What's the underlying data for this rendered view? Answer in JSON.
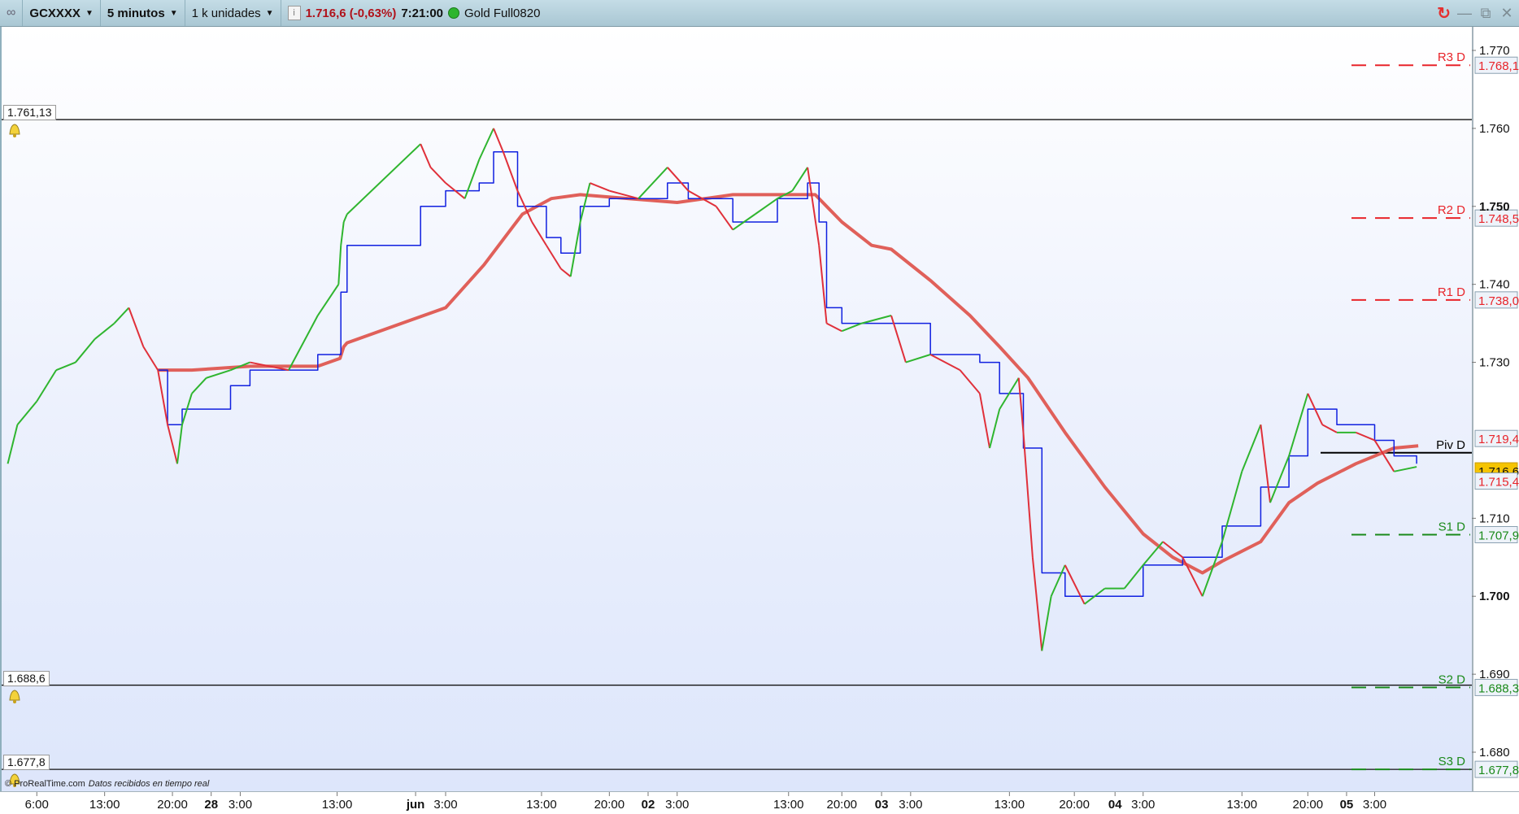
{
  "toolbar": {
    "instrument": "GCXXXX",
    "timeframe": "5 minutos",
    "units": "1 k unidades",
    "price_change": "1.716,6 (-0,63%)",
    "time": "7:21:00",
    "status_color": "#2db52d",
    "product": "Gold Full0820"
  },
  "footer": {
    "copyright": "© ProRealTime.com",
    "status": "Datos recibidos en tiempo real"
  },
  "alert_lines": [
    {
      "label": "1.761,13",
      "value": 1761.13
    },
    {
      "label": "1.688,6",
      "value": 1688.6
    },
    {
      "label": "1.677,8",
      "value": 1677.8
    }
  ],
  "chart_data": {
    "type": "line",
    "y_ticks": [
      {
        "label": "1.770",
        "value": 1770,
        "bold": false
      },
      {
        "label": "1.760",
        "value": 1760,
        "bold": false
      },
      {
        "label": "1.750",
        "value": 1750,
        "bold": true
      },
      {
        "label": "1.740",
        "value": 1740,
        "bold": false
      },
      {
        "label": "1.730",
        "value": 1730,
        "bold": false
      },
      {
        "label": "1.710",
        "value": 1710,
        "bold": false
      },
      {
        "label": "1.700",
        "value": 1700,
        "bold": true
      },
      {
        "label": "1.690",
        "value": 1690,
        "bold": false
      },
      {
        "label": "1.680",
        "value": 1680,
        "bold": false
      }
    ],
    "ylim": [
      1674,
      1775
    ],
    "x_ticks": [
      {
        "label": "6:00",
        "time": "27 06:00",
        "bold": false
      },
      {
        "label": "13:00",
        "time": "27 13:00",
        "bold": false
      },
      {
        "label": "20:00",
        "time": "27 20:00",
        "bold": false
      },
      {
        "label": "28",
        "time": "28 00:00",
        "bold": true
      },
      {
        "label": "3:00",
        "time": "28 03:00",
        "bold": false
      },
      {
        "label": "13:00",
        "time": "28 13:00",
        "bold": false
      },
      {
        "label": "jun",
        "time": "01 00:00",
        "bold": true
      },
      {
        "label": "3:00",
        "time": "01 03:00",
        "bold": false
      },
      {
        "label": "13:00",
        "time": "01 13:00",
        "bold": false
      },
      {
        "label": "20:00",
        "time": "01 20:00",
        "bold": false
      },
      {
        "label": "02",
        "time": "02 00:00",
        "bold": true
      },
      {
        "label": "3:00",
        "time": "02 03:00",
        "bold": false
      },
      {
        "label": "13:00",
        "time": "02 13:00",
        "bold": false
      },
      {
        "label": "20:00",
        "time": "02 20:00",
        "bold": false
      },
      {
        "label": "03",
        "time": "03 00:00",
        "bold": true
      },
      {
        "label": "3:00",
        "time": "03 03:00",
        "bold": false
      },
      {
        "label": "13:00",
        "time": "03 13:00",
        "bold": false
      },
      {
        "label": "20:00",
        "time": "03 20:00",
        "bold": false
      },
      {
        "label": "04",
        "time": "04 00:00",
        "bold": true
      },
      {
        "label": "3:00",
        "time": "04 03:00",
        "bold": false
      },
      {
        "label": "13:00",
        "time": "04 13:00",
        "bold": false
      },
      {
        "label": "20:00",
        "time": "04 20:00",
        "bold": false
      },
      {
        "label": "05",
        "time": "05 00:00",
        "bold": true
      },
      {
        "label": "3:00",
        "time": "05 03:00",
        "bold": false
      }
    ],
    "colors": {
      "up": "#2fb52f",
      "down": "#e0303a",
      "moving_average": "#e0605a",
      "signal_line": "#1020e0",
      "resistance": "#e8242a",
      "support": "#1a8a1a",
      "pivot": "#000000",
      "current_price_bg": "#f5c400"
    },
    "price": [
      [
        "27 03:00",
        1717
      ],
      [
        "27 04:00",
        1722
      ],
      [
        "27 06:00",
        1725
      ],
      [
        "27 08:00",
        1729
      ],
      [
        "27 10:00",
        1730
      ],
      [
        "27 12:00",
        1733
      ],
      [
        "27 14:00",
        1735
      ],
      [
        "27 15:30",
        1737
      ],
      [
        "27 17:00",
        1732
      ],
      [
        "27 18:30",
        1729
      ],
      [
        "27 19:30",
        1722
      ],
      [
        "27 20:30",
        1717
      ],
      [
        "27 21:00",
        1722
      ],
      [
        "27 22:00",
        1726
      ],
      [
        "27 23:30",
        1728
      ],
      [
        "28 02:00",
        1729
      ],
      [
        "28 04:00",
        1730
      ],
      [
        "28 08:00",
        1729
      ],
      [
        "28 11:00",
        1736
      ],
      [
        "28 14:30",
        1740
      ],
      [
        "28 17:00",
        1745
      ],
      [
        "28 20:00",
        1748
      ],
      [
        "28 23:30",
        1749
      ],
      [
        "01 00:30",
        1758
      ],
      [
        "01 01:30",
        1755
      ],
      [
        "01 03:00",
        1753
      ],
      [
        "01 05:00",
        1751
      ],
      [
        "01 06:30",
        1756
      ],
      [
        "01 08:00",
        1760
      ],
      [
        "01 09:00",
        1757
      ],
      [
        "01 10:30",
        1752
      ],
      [
        "01 12:00",
        1748
      ],
      [
        "01 13:30",
        1745
      ],
      [
        "01 15:00",
        1742
      ],
      [
        "01 16:00",
        1741
      ],
      [
        "01 17:00",
        1748
      ],
      [
        "01 18:00",
        1753
      ],
      [
        "01 20:00",
        1752
      ],
      [
        "01 23:00",
        1751
      ],
      [
        "02 02:00",
        1755
      ],
      [
        "02 04:00",
        1752
      ],
      [
        "02 06:30",
        1750
      ],
      [
        "02 08:00",
        1747
      ],
      [
        "02 10:00",
        1749
      ],
      [
        "02 12:00",
        1751
      ],
      [
        "02 13:30",
        1752
      ],
      [
        "02 15:30",
        1755
      ],
      [
        "02 17:00",
        1745
      ],
      [
        "02 18:00",
        1735
      ],
      [
        "02 20:00",
        1734
      ],
      [
        "02 22:00",
        1735
      ],
      [
        "03 01:00",
        1736
      ],
      [
        "03 02:30",
        1730
      ],
      [
        "03 05:00",
        1731
      ],
      [
        "03 08:00",
        1729
      ],
      [
        "03 10:00",
        1726
      ],
      [
        "03 11:00",
        1719
      ],
      [
        "03 12:00",
        1724
      ],
      [
        "03 14:00",
        1728
      ],
      [
        "03 14:30",
        1721
      ],
      [
        "03 15:30",
        1705
      ],
      [
        "03 16:30",
        1693
      ],
      [
        "03 17:30",
        1700
      ],
      [
        "03 19:00",
        1704
      ],
      [
        "03 21:00",
        1699
      ],
      [
        "03 23:00",
        1701
      ],
      [
        "04 01:00",
        1701
      ],
      [
        "04 03:00",
        1704
      ],
      [
        "04 05:00",
        1707
      ],
      [
        "04 07:00",
        1705
      ],
      [
        "04 09:00",
        1700
      ],
      [
        "04 11:00",
        1707
      ],
      [
        "04 13:00",
        1716
      ],
      [
        "04 15:00",
        1722
      ],
      [
        "04 16:00",
        1712
      ],
      [
        "04 18:00",
        1718
      ],
      [
        "04 20:00",
        1726
      ],
      [
        "04 21:30",
        1722
      ],
      [
        "04 23:00",
        1721
      ],
      [
        "05 01:00",
        1721
      ],
      [
        "05 03:00",
        1720
      ],
      [
        "05 05:00",
        1716
      ],
      [
        "05 07:20",
        1716.6
      ]
    ],
    "signal_line": [
      [
        "27 18:30",
        1729
      ],
      [
        "27 19:30",
        1722
      ],
      [
        "27 21:00",
        1724
      ],
      [
        "28 02:00",
        1727
      ],
      [
        "28 04:00",
        1729
      ],
      [
        "28 11:00",
        1731
      ],
      [
        "28 17:00",
        1739
      ],
      [
        "28 23:30",
        1745
      ],
      [
        "01 00:30",
        1750
      ],
      [
        "01 03:00",
        1752
      ],
      [
        "01 06:30",
        1753
      ],
      [
        "01 08:00",
        1757
      ],
      [
        "01 10:30",
        1750
      ],
      [
        "01 13:30",
        1746
      ],
      [
        "01 15:00",
        1744
      ],
      [
        "01 17:00",
        1750
      ],
      [
        "01 20:00",
        1751
      ],
      [
        "02 02:00",
        1753
      ],
      [
        "02 04:00",
        1751
      ],
      [
        "02 08:00",
        1748
      ],
      [
        "02 12:00",
        1751
      ],
      [
        "02 15:30",
        1753
      ],
      [
        "02 17:00",
        1748
      ],
      [
        "02 18:00",
        1737
      ],
      [
        "02 20:00",
        1735
      ],
      [
        "03 02:30",
        1735
      ],
      [
        "03 05:00",
        1731
      ],
      [
        "03 10:00",
        1730
      ],
      [
        "03 12:00",
        1726
      ],
      [
        "03 14:30",
        1719
      ],
      [
        "03 16:30",
        1703
      ],
      [
        "03 19:00",
        1700
      ],
      [
        "03 23:00",
        1700
      ],
      [
        "04 03:00",
        1704
      ],
      [
        "04 07:00",
        1705
      ],
      [
        "04 11:00",
        1709
      ],
      [
        "04 15:00",
        1714
      ],
      [
        "04 18:00",
        1718
      ],
      [
        "04 20:00",
        1724
      ],
      [
        "04 23:00",
        1722
      ],
      [
        "05 03:00",
        1720
      ],
      [
        "05 05:00",
        1718
      ],
      [
        "05 07:20",
        1717
      ]
    ],
    "moving_average": [
      [
        "27 18:30",
        1729
      ],
      [
        "27 22:00",
        1729
      ],
      [
        "28 04:00",
        1729.5
      ],
      [
        "28 11:00",
        1729.5
      ],
      [
        "28 16:00",
        1730.5
      ],
      [
        "28 20:00",
        1732
      ],
      [
        "28 23:30",
        1732.5
      ],
      [
        "01 03:00",
        1737
      ],
      [
        "01 07:00",
        1742.5
      ],
      [
        "01 11:00",
        1749
      ],
      [
        "01 14:00",
        1751
      ],
      [
        "01 17:00",
        1751.5
      ],
      [
        "01 22:00",
        1751
      ],
      [
        "02 03:00",
        1750.5
      ],
      [
        "02 08:00",
        1751.5
      ],
      [
        "02 12:00",
        1751.5
      ],
      [
        "02 16:30",
        1751.5
      ],
      [
        "02 20:00",
        1748
      ],
      [
        "02 23:00",
        1745
      ],
      [
        "03 01:00",
        1744.5
      ],
      [
        "03 05:00",
        1740.5
      ],
      [
        "03 09:00",
        1736
      ],
      [
        "03 12:00",
        1732
      ],
      [
        "03 15:00",
        1728
      ],
      [
        "03 19:00",
        1721
      ],
      [
        "03 23:00",
        1714
      ],
      [
        "04 03:00",
        1708
      ],
      [
        "04 06:00",
        1705
      ],
      [
        "04 09:00",
        1703
      ],
      [
        "04 11:00",
        1704.5
      ],
      [
        "04 15:00",
        1707
      ],
      [
        "04 18:00",
        1712
      ],
      [
        "04 21:00",
        1714.5
      ],
      [
        "05 01:00",
        1717
      ],
      [
        "05 05:00",
        1719
      ],
      [
        "05 07:30",
        1719.3
      ]
    ],
    "pivot_levels": [
      {
        "name": "R3 D",
        "value_label": "1.768,1",
        "value": 1768.1,
        "kind": "resistance"
      },
      {
        "name": "R2 D",
        "value_label": "1.748,5",
        "value": 1748.5,
        "kind": "resistance"
      },
      {
        "name": "R1 D",
        "value_label": "1.738,0",
        "value": 1738.0,
        "kind": "resistance"
      },
      {
        "name": "Piv D",
        "value_label": "1.718,4",
        "value": 1718.4,
        "kind": "pivot"
      },
      {
        "name": "S1 D",
        "value_label": "1.707,9",
        "value": 1707.9,
        "kind": "support"
      },
      {
        "name": "S2 D",
        "value_label": "1.688,3",
        "value": 1688.3,
        "kind": "support"
      },
      {
        "name": "S3 D",
        "value_label": "1.677,8",
        "value": 1677.8,
        "kind": "support"
      }
    ],
    "price_markers": [
      {
        "label": "1.719,4",
        "value": 1719.4,
        "kind": "resistance"
      },
      {
        "label": "1.716,6",
        "value": 1716.6,
        "kind": "current"
      },
      {
        "label": "1.715,4",
        "value": 1715.4,
        "kind": "resistance"
      }
    ]
  }
}
